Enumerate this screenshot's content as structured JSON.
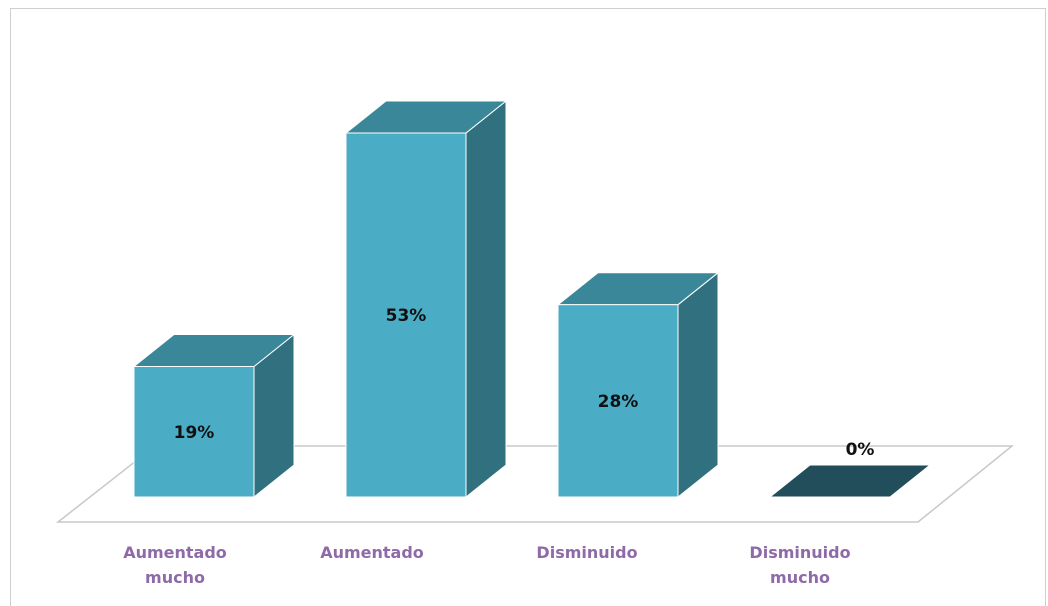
{
  "chart_data": {
    "type": "bar",
    "categories": [
      [
        "Aumentado",
        "mucho"
      ],
      [
        "Aumentado"
      ],
      [
        "Disminuido"
      ],
      [
        "Disminuido",
        "mucho"
      ]
    ],
    "values": [
      19,
      53,
      28,
      0
    ],
    "value_labels": [
      "19%",
      "53%",
      "28%",
      "0%"
    ],
    "title": "",
    "xlabel": "",
    "ylabel": "",
    "ylim": [
      0,
      60
    ],
    "grid": false,
    "legend": "none",
    "style": "3d-column"
  },
  "colors": {
    "bar_front": "#4bacc6",
    "bar_top": "#3a8799",
    "bar_side": "#31707f",
    "bar_empty": "#214e5a",
    "category_text": "#8e6aa8",
    "floor_stroke": "#c8c8c8"
  }
}
